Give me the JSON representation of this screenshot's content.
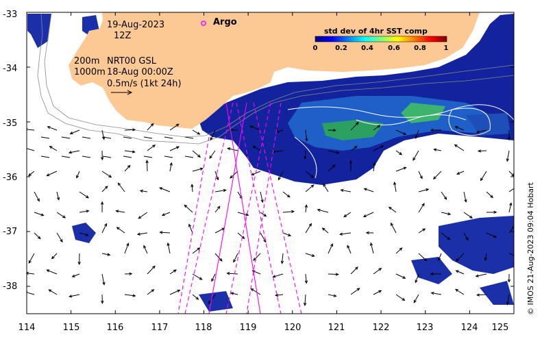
{
  "map": {
    "lon_range": [
      114,
      125
    ],
    "lat_range": [
      -38.5,
      -33
    ],
    "x_ticks": [
      "114",
      "115",
      "116",
      "117",
      "118",
      "119",
      "120",
      "121",
      "122",
      "123",
      "124",
      "125"
    ],
    "y_ticks": [
      "-33",
      "-34",
      "-35",
      "-36",
      "-37",
      "-38"
    ],
    "land_color": "#fcc893",
    "frame_color": "#000000"
  },
  "header": {
    "date": "19-Aug-2023",
    "hour": "12Z",
    "argo_label": "Argo",
    "argo_marker_color": "#ff00ff"
  },
  "contours": {
    "line1_label": "200m",
    "line2_label": "1000m",
    "product": "NRT00 GSL",
    "product_time": "18-Aug 00:00Z"
  },
  "scale": {
    "label": "0.5m/s (1kt 24h)"
  },
  "colorbar": {
    "title": "std dev of 4hr SST comp",
    "ticks": [
      "0",
      "0.2",
      "0.4",
      "0.6",
      "0.8",
      "1"
    ],
    "colors": [
      "#00007f",
      "#0000ff",
      "#007fff",
      "#00ffff",
      "#7fff7f",
      "#ffff00",
      "#ff7f00",
      "#ff0000",
      "#7f0000"
    ]
  },
  "credit": "© IMOS 21-Aug-2023 09:04 Hobart",
  "tracks": {
    "color": "#ff00ff"
  }
}
